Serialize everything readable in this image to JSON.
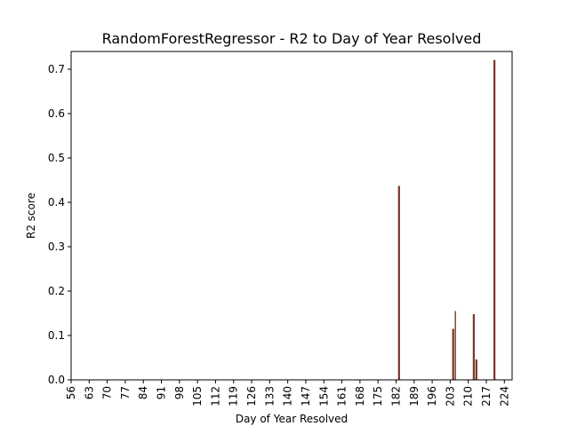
{
  "chart_data": {
    "type": "bar",
    "title": "RandomForestRegressor - R2 to Day of Year Resolved",
    "xlabel": "Day of Year Resolved",
    "ylabel": "R2 score",
    "xlim": [
      56,
      227
    ],
    "ylim": [
      0,
      0.74
    ],
    "xticks": [
      "56",
      "63",
      "70",
      "77",
      "84",
      "91",
      "98",
      "105",
      "112",
      "119",
      "126",
      "133",
      "140",
      "147",
      "154",
      "161",
      "168",
      "175",
      "182",
      "189",
      "196",
      "203",
      "210",
      "217",
      "224"
    ],
    "yticks": [
      "0.0",
      "0.1",
      "0.2",
      "0.3",
      "0.4",
      "0.5",
      "0.6",
      "0.7"
    ],
    "grid": false,
    "bar_color": "#7a3b2e",
    "series": [
      {
        "values": [
          {
            "x": 183.0,
            "y": 0.437
          },
          {
            "x": 183.3,
            "y": 0.437
          },
          {
            "x": 204.0,
            "y": 0.115
          },
          {
            "x": 204.3,
            "y": 0.115
          },
          {
            "x": 205.0,
            "y": 0.155
          },
          {
            "x": 212.0,
            "y": 0.148
          },
          {
            "x": 212.3,
            "y": 0.148
          },
          {
            "x": 213.0,
            "y": 0.046
          },
          {
            "x": 213.3,
            "y": 0.046
          },
          {
            "x": 220.0,
            "y": 0.721
          },
          {
            "x": 220.3,
            "y": 0.721
          }
        ]
      }
    ]
  }
}
